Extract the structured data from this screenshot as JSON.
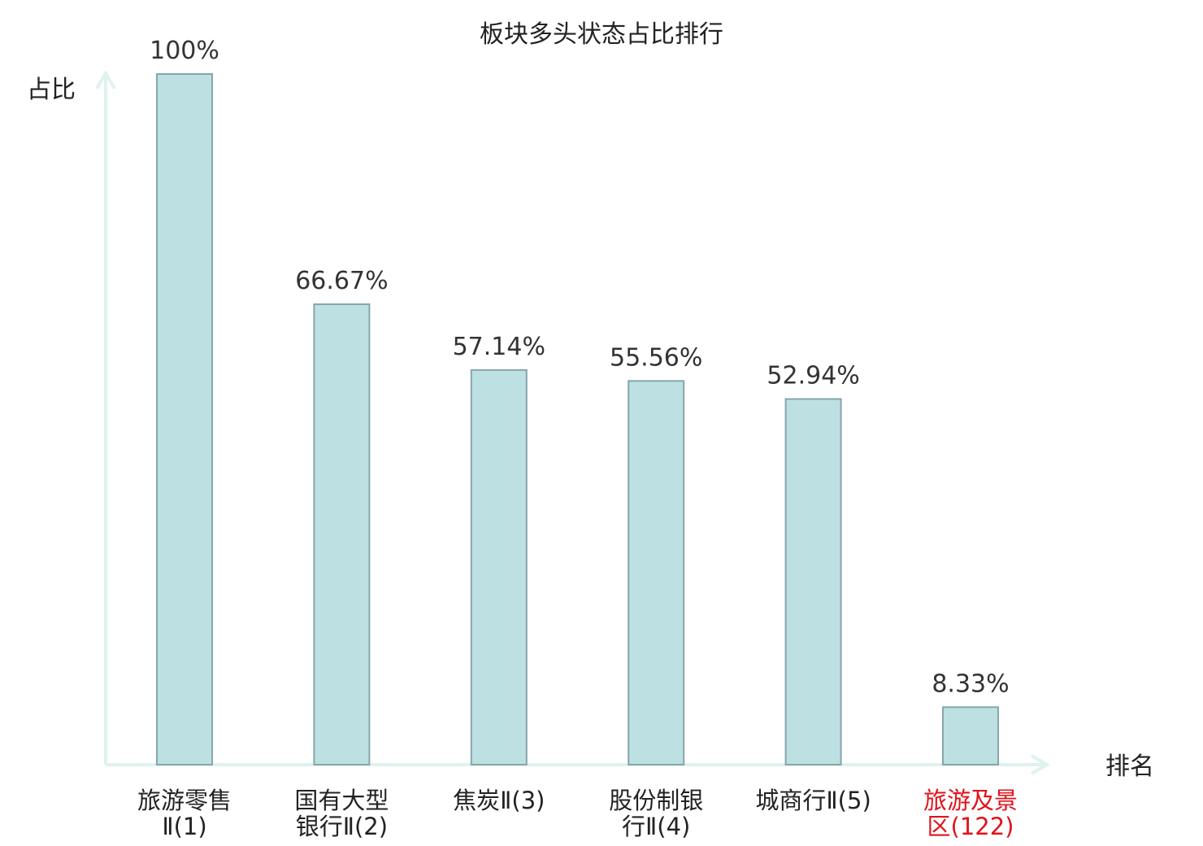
{
  "chart_data": {
    "type": "bar",
    "title": "板块多头状态占比排行",
    "ylabel": "占比",
    "xlabel": "排名",
    "ylim": [
      0,
      100
    ],
    "grid": false,
    "categories": [
      {
        "name_lines": [
          "旅游零售",
          "Ⅱ(1)"
        ],
        "highlight": false
      },
      {
        "name_lines": [
          "国有大型",
          "银行Ⅱ(2)"
        ],
        "highlight": false
      },
      {
        "name_lines": [
          "焦炭Ⅱ(3)"
        ],
        "highlight": false
      },
      {
        "name_lines": [
          "股份制银",
          "行Ⅱ(4)"
        ],
        "highlight": false
      },
      {
        "name_lines": [
          "城商行Ⅱ(5)"
        ],
        "highlight": false
      },
      {
        "name_lines": [
          "旅游及景",
          "区(122)"
        ],
        "highlight": true
      }
    ],
    "values": [
      100,
      66.67,
      57.14,
      55.56,
      52.94,
      8.33
    ],
    "value_labels": [
      "100%",
      "66.67%",
      "57.14%",
      "55.56%",
      "52.94%",
      "8.33%"
    ],
    "colors": {
      "bar_fill": "#bde0e3",
      "bar_stroke": "#87a6aa",
      "axis": "#dff2ef",
      "highlight_text": "#e0131a"
    }
  }
}
